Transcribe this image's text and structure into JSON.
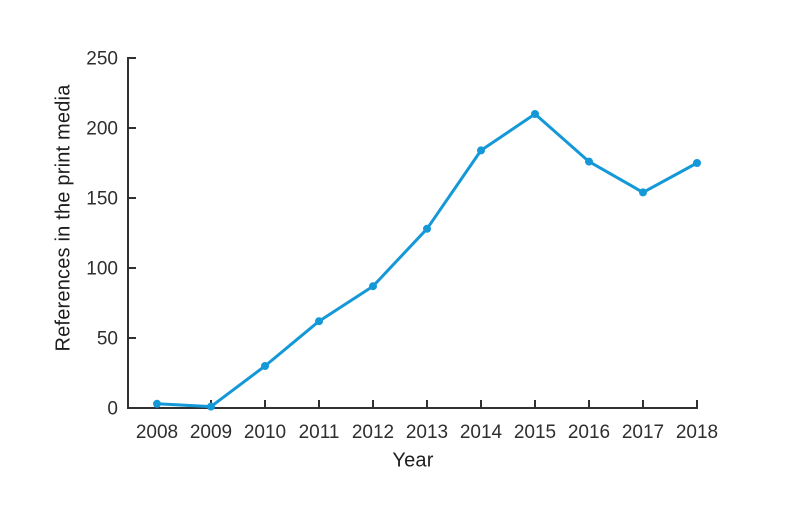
{
  "page": {
    "background": "#ffffff"
  },
  "chart_data": {
    "type": "line",
    "title": "",
    "xlabel": "Year",
    "ylabel": "References in the print media",
    "categories": [
      2008,
      2009,
      2010,
      2011,
      2012,
      2013,
      2014,
      2015,
      2016,
      2017,
      2018
    ],
    "series": [
      {
        "name": "References in the print media",
        "color": "#1498d7",
        "marker": "circle",
        "values": [
          3,
          1,
          30,
          62,
          87,
          128,
          184,
          210,
          176,
          154,
          175
        ]
      }
    ],
    "ylim": [
      0,
      250
    ],
    "yticks": [
      0,
      50,
      100,
      150,
      200,
      250
    ],
    "grid": false,
    "legend_position": "none",
    "tick_direction": "in",
    "axis_color": "#303030",
    "tick_label_color": "#2e2e2e",
    "axis_title_color": "#1e1e1e"
  }
}
